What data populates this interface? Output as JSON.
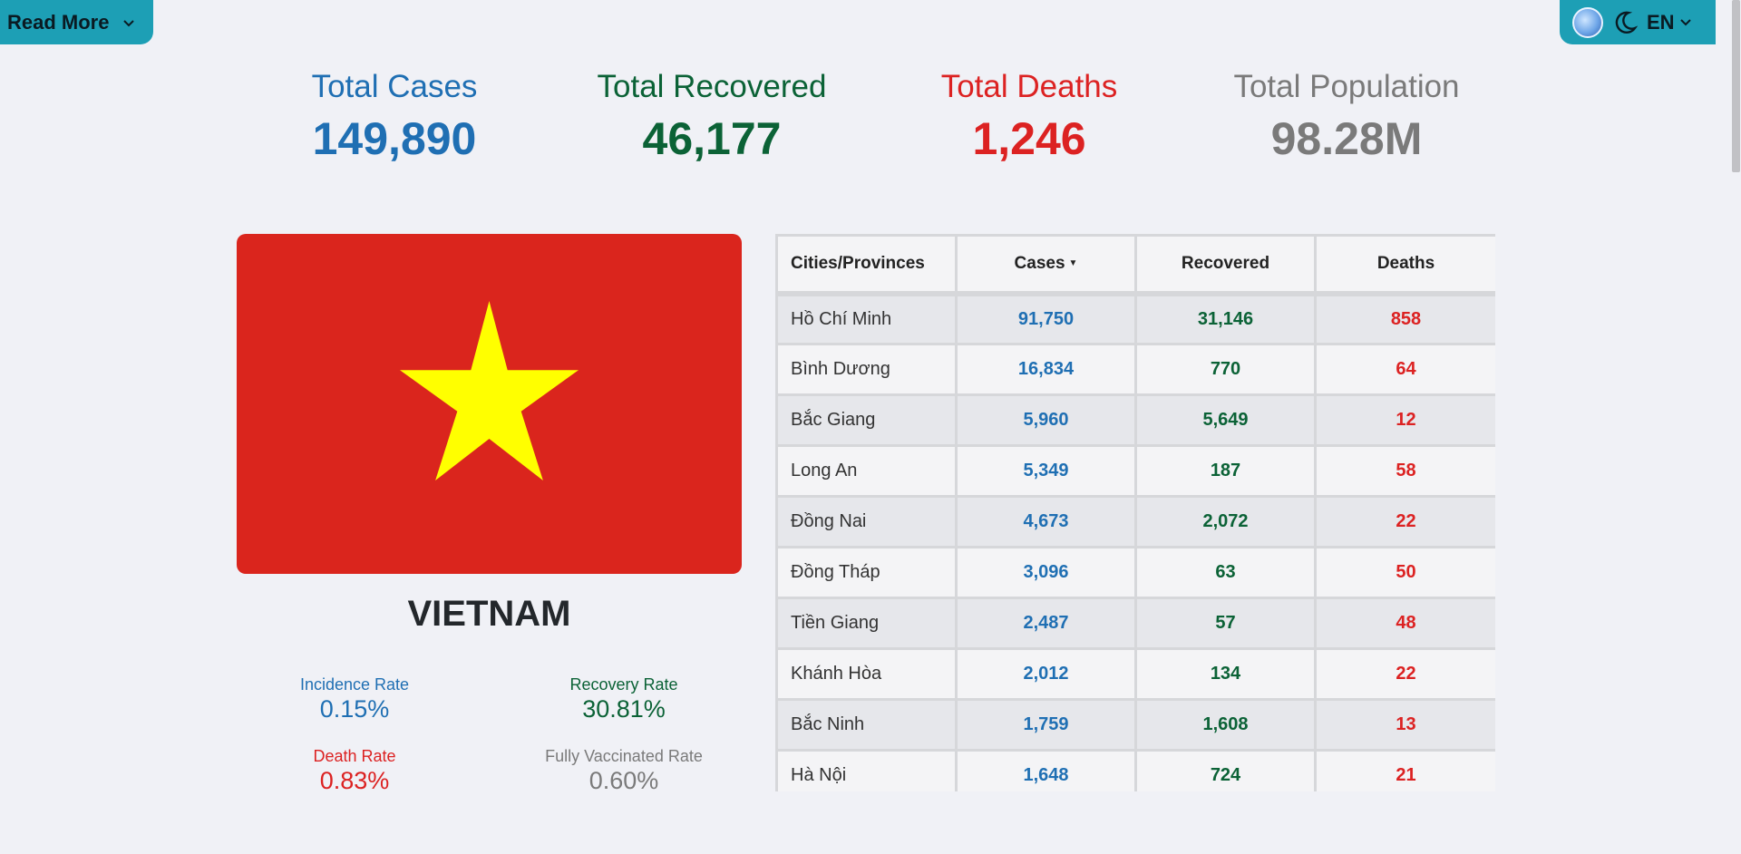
{
  "header": {
    "read_more_label": "Read More",
    "language": "EN",
    "icons": [
      "globe-icon",
      "moon-icon",
      "chevron-down-icon"
    ]
  },
  "stats": [
    {
      "label": "Total Cases",
      "value": "149,890",
      "color": "#1f6fb3"
    },
    {
      "label": "Total Recovered",
      "value": "46,177",
      "color": "#0b6236"
    },
    {
      "label": "Total Deaths",
      "value": "1,246",
      "color": "#dc2222"
    },
    {
      "label": "Total Population",
      "value": "98.28M",
      "color": "#7a7a7a"
    }
  ],
  "country": {
    "name": "VIETNAM",
    "flag_colors": {
      "background": "#da251d",
      "star": "#ffff00"
    }
  },
  "rates": [
    {
      "label": "Incidence Rate",
      "value": "0.15%"
    },
    {
      "label": "Recovery Rate",
      "value": "30.81%"
    },
    {
      "label": "Death Rate",
      "value": "0.83%"
    },
    {
      "label": "Fully Vaccinated Rate",
      "value": "0.60%"
    }
  ],
  "table": {
    "headers": [
      "Cities/Provinces",
      "Cases",
      "Recovered",
      "Deaths"
    ],
    "sort_indicator": "▼",
    "rows": [
      {
        "city": "Hồ Chí Minh",
        "cases": "91,750",
        "recovered": "31,146",
        "deaths": "858"
      },
      {
        "city": "Bình Dương",
        "cases": "16,834",
        "recovered": "770",
        "deaths": "64"
      },
      {
        "city": "Bắc Giang",
        "cases": "5,960",
        "recovered": "5,649",
        "deaths": "12"
      },
      {
        "city": "Long An",
        "cases": "5,349",
        "recovered": "187",
        "deaths": "58"
      },
      {
        "city": "Đồng Nai",
        "cases": "4,673",
        "recovered": "2,072",
        "deaths": "22"
      },
      {
        "city": "Đồng Tháp",
        "cases": "3,096",
        "recovered": "63",
        "deaths": "50"
      },
      {
        "city": "Tiền Giang",
        "cases": "2,487",
        "recovered": "57",
        "deaths": "48"
      },
      {
        "city": "Khánh Hòa",
        "cases": "2,012",
        "recovered": "134",
        "deaths": "22"
      },
      {
        "city": "Bắc Ninh",
        "cases": "1,759",
        "recovered": "1,608",
        "deaths": "13"
      },
      {
        "city": "Hà Nội",
        "cases": "1,648",
        "recovered": "724",
        "deaths": "21"
      }
    ]
  }
}
